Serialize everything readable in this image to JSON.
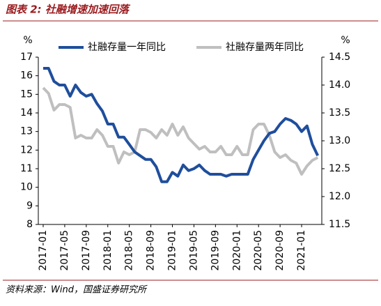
{
  "chart_data": {
    "type": "line",
    "title": "图表 2:  社融增速加速回落",
    "source": "资料来源：Wind，国盛证券研究所",
    "y_unit": "%",
    "y2_unit": "%",
    "categories": [
      "2017-01",
      null,
      null,
      null,
      "2017-05",
      null,
      null,
      null,
      "2017-09",
      null,
      null,
      null,
      "2018-01",
      null,
      null,
      null,
      "2018-05",
      null,
      null,
      null,
      "2018-09",
      null,
      null,
      null,
      "2019-01",
      null,
      null,
      null,
      "2019-05",
      null,
      null,
      null,
      "2019-09",
      null,
      null,
      null,
      "2020-01",
      null,
      null,
      null,
      "2020-05",
      null,
      null,
      null,
      "2020-09",
      null,
      null,
      null,
      "2021-01",
      null,
      null,
      null
    ],
    "series": [
      {
        "name": "社融存量一年同比",
        "color": "#1f4e9c",
        "axis": "y",
        "values": [
          16.4,
          16.4,
          15.7,
          15.5,
          15.5,
          14.9,
          15.5,
          15.1,
          14.9,
          15.0,
          14.5,
          14.1,
          13.4,
          13.4,
          12.7,
          12.7,
          12.3,
          11.9,
          11.7,
          11.5,
          11.5,
          11.1,
          10.3,
          10.3,
          10.8,
          10.6,
          11.2,
          10.9,
          11.0,
          11.2,
          10.9,
          10.7,
          10.7,
          10.7,
          10.6,
          10.7,
          10.7,
          10.7,
          10.7,
          11.5,
          12.0,
          12.5,
          12.9,
          13.0,
          13.4,
          13.7,
          13.6,
          13.4,
          13.0,
          13.3,
          12.3,
          11.7
        ]
      },
      {
        "name": "社融存量两年同比",
        "color": "#bfbfbf",
        "axis": "y2",
        "values": [
          13.95,
          13.85,
          13.55,
          13.65,
          13.65,
          13.6,
          13.05,
          13.1,
          13.05,
          13.05,
          13.2,
          13.1,
          12.9,
          12.9,
          12.6,
          12.8,
          12.75,
          12.8,
          13.2,
          13.2,
          13.15,
          13.05,
          13.2,
          13.1,
          13.3,
          13.1,
          13.25,
          13.05,
          12.95,
          12.85,
          12.9,
          12.8,
          12.8,
          12.9,
          12.75,
          12.75,
          12.9,
          12.75,
          12.75,
          13.2,
          13.3,
          13.3,
          13.1,
          12.8,
          12.7,
          12.75,
          12.65,
          12.6,
          12.4,
          12.55,
          12.65,
          12.7
        ]
      }
    ],
    "ylim": [
      8,
      17
    ],
    "yticks": [
      8,
      9,
      10,
      11,
      12,
      13,
      14,
      15,
      16,
      17
    ],
    "y2lim": [
      11.5,
      14.5
    ],
    "y2ticks": [
      11.5,
      {
        "value": 12,
        "label": "12.0"
      },
      12.5,
      {
        "value": 13,
        "label": "13.0"
      },
      13.5,
      {
        "value": 14,
        "label": "14.0"
      },
      14.5
    ]
  }
}
